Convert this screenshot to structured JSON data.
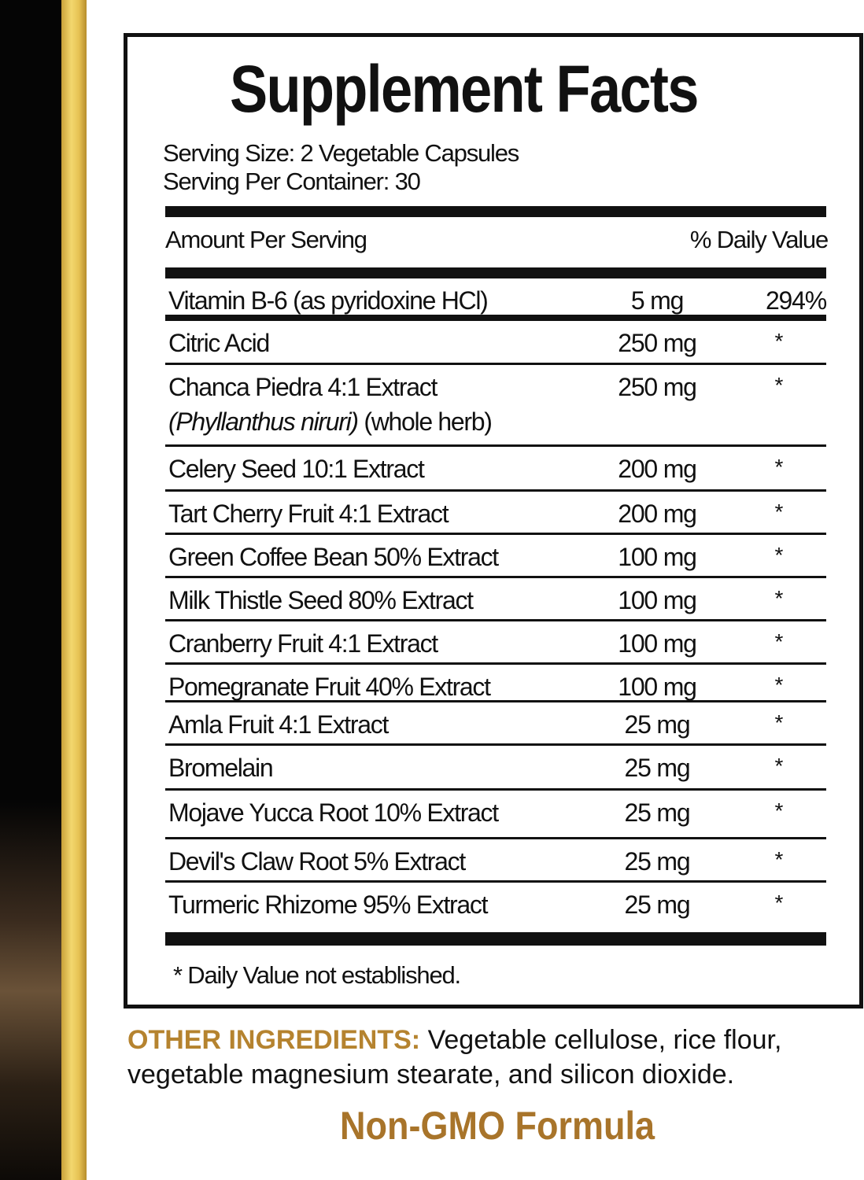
{
  "title": "Supplement Facts",
  "serving_size": "Serving Size: 2 Vegetable Capsules",
  "servings_per_container": "Serving Per Container: 30",
  "header": {
    "amount": "Amount Per Serving",
    "daily_value": "% Daily Value"
  },
  "rows": [
    {
      "name": "Vitamin B-6 (as pyridoxine HCl)",
      "amount": "5 mg",
      "dv": "294%"
    },
    {
      "name": "Citric Acid",
      "amount": "250 mg",
      "dv": "*"
    },
    {
      "name": "Chanca Piedra 4:1 Extract",
      "name_italic": "(Phyllanthus niruri)",
      "name_suffix": " (whole herb)",
      "amount": "250 mg",
      "dv": "*"
    },
    {
      "name": "Celery Seed 10:1 Extract",
      "amount": "200 mg",
      "dv": "*"
    },
    {
      "name": "Tart Cherry Fruit 4:1 Extract",
      "amount": "200 mg",
      "dv": "*"
    },
    {
      "name": "Green Coffee Bean 50% Extract",
      "amount": "100 mg",
      "dv": "*"
    },
    {
      "name": "Milk Thistle Seed 80% Extract",
      "amount": "100 mg",
      "dv": "*"
    },
    {
      "name": "Cranberry Fruit 4:1 Extract",
      "amount": "100 mg",
      "dv": "*"
    },
    {
      "name": "Pomegranate Fruit 40% Extract",
      "amount": "100 mg",
      "dv": "*"
    },
    {
      "name": "Amla Fruit 4:1 Extract",
      "amount": "25 mg",
      "dv": "*"
    },
    {
      "name": "Bromelain",
      "amount": "25 mg",
      "dv": "*"
    },
    {
      "name": "Mojave Yucca Root 10% Extract",
      "amount": "25 mg",
      "dv": "*"
    },
    {
      "name": "Devil's Claw Root 5% Extract",
      "amount": "25 mg",
      "dv": "*"
    },
    {
      "name": "Turmeric Rhizome 95% Extract",
      "amount": "25 mg",
      "dv": "*"
    }
  ],
  "footnote": "* Daily Value not established.",
  "other_ingredients": {
    "label": "OTHER INGREDIENTS:",
    "text": " Vegetable cellulose, rice flour,",
    "text2": "vegetable magnesium stearate, and silicon dioxide."
  },
  "non_gmo": "Non-GMO Formula",
  "colors": {
    "gold": "#b5832f",
    "strip_gold": "#e6c253",
    "text": "#111111"
  }
}
